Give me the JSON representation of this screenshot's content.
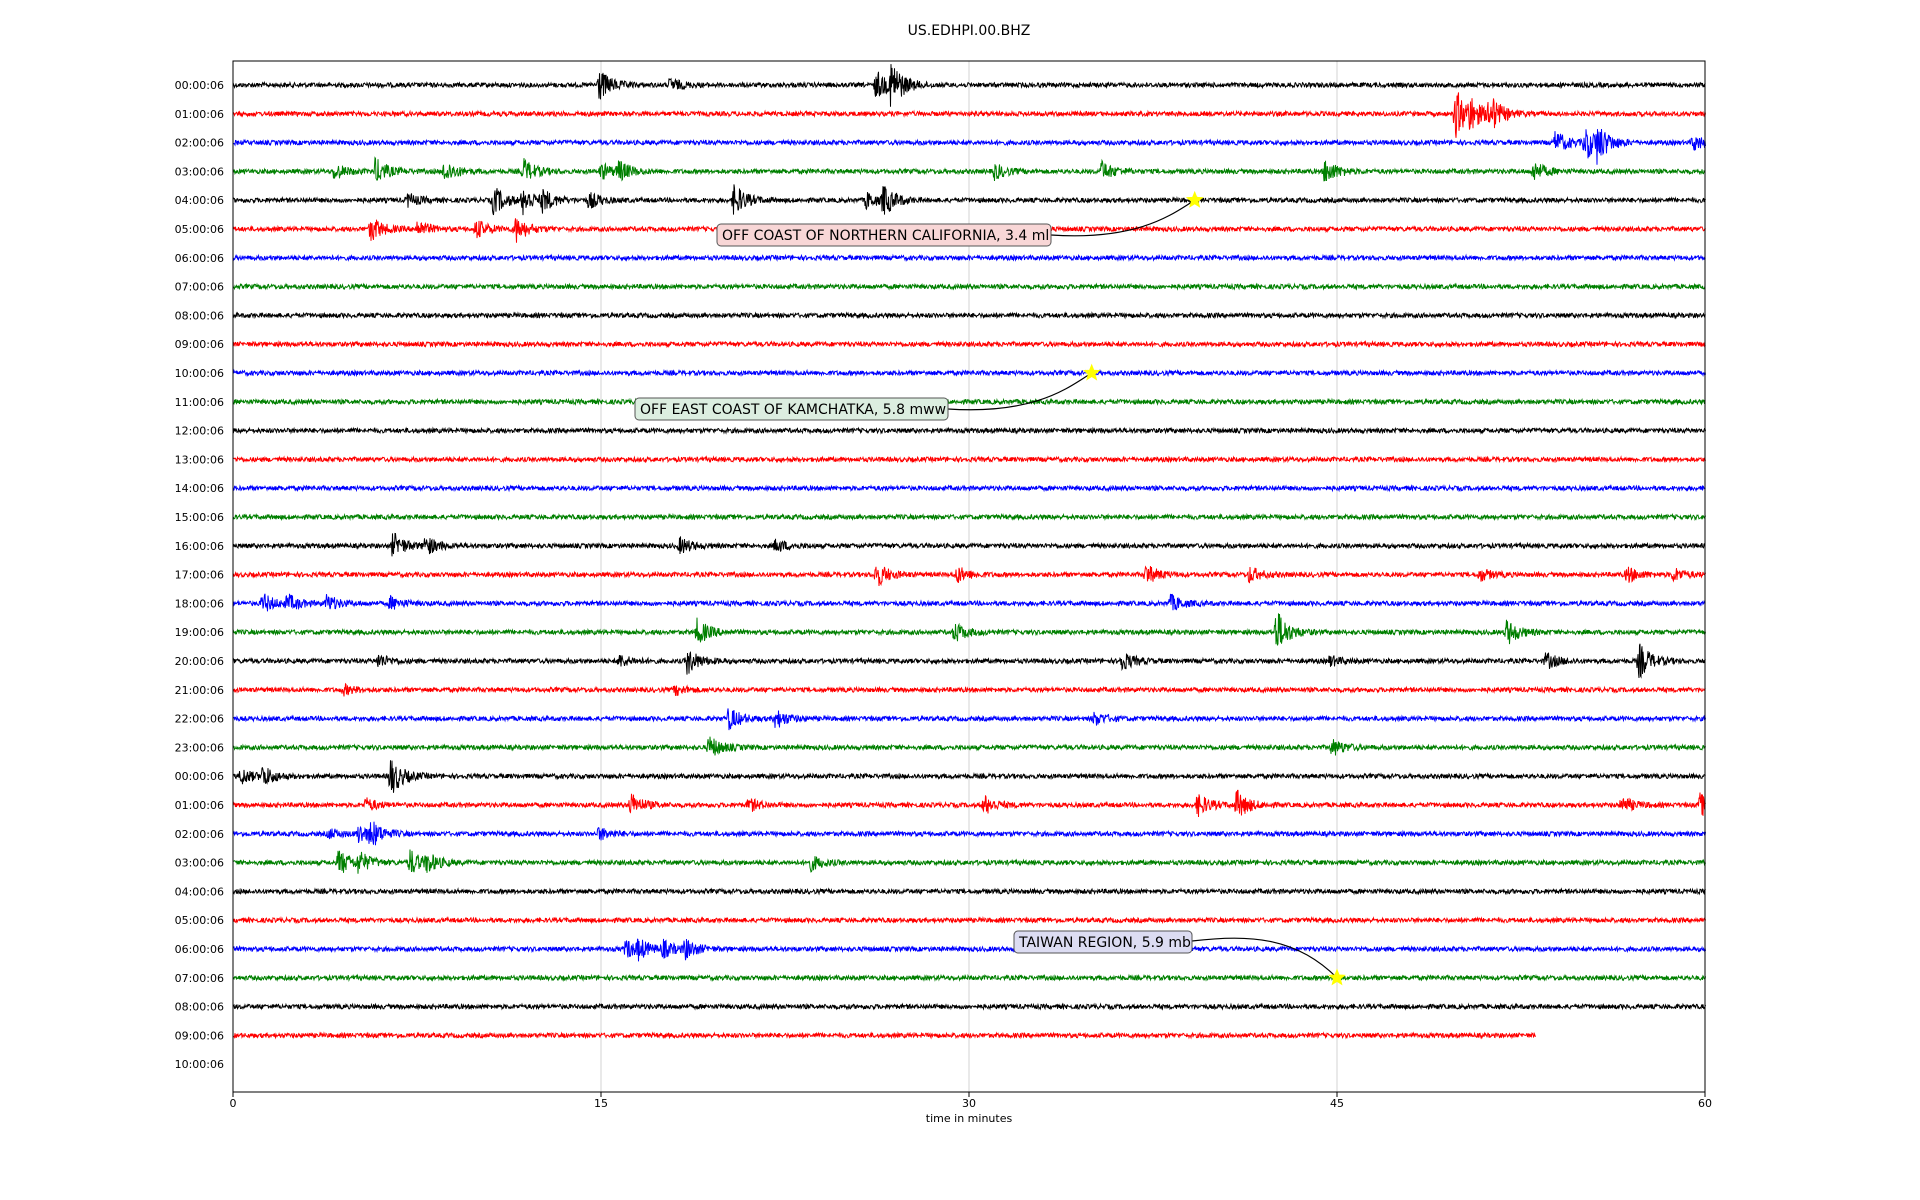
{
  "chart_data": {
    "type": "line",
    "title": "US.EDHPI.00.BHZ",
    "xlabel": "time in minutes",
    "xlim": [
      0,
      60
    ],
    "x_ticks": [
      0,
      15,
      30,
      45,
      60
    ],
    "grid": "vertical",
    "line_colors": [
      "#000000",
      "#ff0000",
      "#0000ff",
      "#008000"
    ],
    "marker_color": "#ffff00",
    "traces": [
      {
        "label": "00:00:06",
        "end": 60,
        "events": [
          {
            "t": 14.9,
            "a": 1.0
          },
          {
            "t": 17.8,
            "a": 0.4
          },
          {
            "t": 26.8,
            "a": 1.4
          },
          {
            "t": 26.2,
            "a": 0.9
          }
        ]
      },
      {
        "label": "01:00:06",
        "end": 60,
        "events": [
          {
            "t": 49.8,
            "a": 1.6
          },
          {
            "t": 51.2,
            "a": 1.1
          },
          {
            "t": 50.4,
            "a": 0.8
          }
        ]
      },
      {
        "label": "02:00:06",
        "end": 60,
        "events": [
          {
            "t": 53.9,
            "a": 0.7
          },
          {
            "t": 55.1,
            "a": 1.1
          },
          {
            "t": 55.6,
            "a": 0.9
          },
          {
            "t": 59.5,
            "a": 0.5
          }
        ]
      },
      {
        "label": "03:00:06",
        "end": 60,
        "events": [
          {
            "t": 4.1,
            "a": 0.5
          },
          {
            "t": 5.8,
            "a": 0.8
          },
          {
            "t": 8.6,
            "a": 0.7
          },
          {
            "t": 11.8,
            "a": 0.8
          },
          {
            "t": 15.0,
            "a": 0.5
          },
          {
            "t": 15.7,
            "a": 0.6
          },
          {
            "t": 31.0,
            "a": 0.5
          },
          {
            "t": 35.4,
            "a": 0.6
          },
          {
            "t": 44.5,
            "a": 0.8
          },
          {
            "t": 53.0,
            "a": 0.6
          }
        ]
      },
      {
        "label": "04:00:06",
        "end": 60,
        "events": [
          {
            "t": 7.1,
            "a": 0.4
          },
          {
            "t": 10.6,
            "a": 0.9
          },
          {
            "t": 11.8,
            "a": 0.8
          },
          {
            "t": 12.6,
            "a": 0.6
          },
          {
            "t": 14.5,
            "a": 0.5
          },
          {
            "t": 20.4,
            "a": 1.0
          },
          {
            "t": 25.8,
            "a": 0.5
          },
          {
            "t": 26.5,
            "a": 0.9
          }
        ]
      },
      {
        "label": "05:00:06",
        "end": 60,
        "events": [
          {
            "t": 5.6,
            "a": 0.8
          },
          {
            "t": 7.5,
            "a": 0.5
          },
          {
            "t": 9.9,
            "a": 0.6
          },
          {
            "t": 11.5,
            "a": 0.8
          }
        ]
      },
      {
        "label": "06:00:06",
        "end": 60,
        "events": []
      },
      {
        "label": "07:00:06",
        "end": 60,
        "events": []
      },
      {
        "label": "08:00:06",
        "end": 60,
        "events": []
      },
      {
        "label": "09:00:06",
        "end": 60,
        "events": []
      },
      {
        "label": "10:00:06",
        "end": 60,
        "events": []
      },
      {
        "label": "11:00:06",
        "end": 60,
        "events": []
      },
      {
        "label": "12:00:06",
        "end": 60,
        "events": []
      },
      {
        "label": "13:00:06",
        "end": 60,
        "events": []
      },
      {
        "label": "14:00:06",
        "end": 60,
        "events": []
      },
      {
        "label": "15:00:06",
        "end": 60,
        "events": []
      },
      {
        "label": "16:00:06",
        "end": 60,
        "events": [
          {
            "t": 6.5,
            "a": 0.8
          },
          {
            "t": 7.8,
            "a": 0.6
          },
          {
            "t": 18.2,
            "a": 0.5
          },
          {
            "t": 22.1,
            "a": 0.4
          }
        ]
      },
      {
        "label": "17:00:06",
        "end": 60,
        "events": [
          {
            "t": 26.2,
            "a": 0.8
          },
          {
            "t": 29.5,
            "a": 0.5
          },
          {
            "t": 37.2,
            "a": 0.6
          },
          {
            "t": 41.4,
            "a": 0.5
          },
          {
            "t": 50.8,
            "a": 0.4
          },
          {
            "t": 56.8,
            "a": 0.5
          },
          {
            "t": 58.7,
            "a": 0.4
          }
        ]
      },
      {
        "label": "18:00:06",
        "end": 60,
        "events": [
          {
            "t": 1.2,
            "a": 0.6
          },
          {
            "t": 2.2,
            "a": 0.5
          },
          {
            "t": 3.8,
            "a": 0.5
          },
          {
            "t": 6.4,
            "a": 0.4
          },
          {
            "t": 38.2,
            "a": 0.5
          }
        ]
      },
      {
        "label": "19:00:06",
        "end": 60,
        "events": [
          {
            "t": 18.9,
            "a": 0.8
          },
          {
            "t": 29.4,
            "a": 0.6
          },
          {
            "t": 42.5,
            "a": 1.4
          },
          {
            "t": 51.9,
            "a": 0.8
          }
        ]
      },
      {
        "label": "20:00:06",
        "end": 60,
        "events": [
          {
            "t": 5.9,
            "a": 0.4
          },
          {
            "t": 15.7,
            "a": 0.4
          },
          {
            "t": 18.5,
            "a": 0.8
          },
          {
            "t": 36.2,
            "a": 0.6
          },
          {
            "t": 44.7,
            "a": 0.3
          },
          {
            "t": 53.5,
            "a": 0.5
          },
          {
            "t": 57.3,
            "a": 1.1
          }
        ]
      },
      {
        "label": "21:00:06",
        "end": 60,
        "events": [
          {
            "t": 4.5,
            "a": 0.3
          },
          {
            "t": 18.0,
            "a": 0.3
          }
        ]
      },
      {
        "label": "22:00:06",
        "end": 60,
        "events": [
          {
            "t": 20.2,
            "a": 0.7
          },
          {
            "t": 22.1,
            "a": 0.6
          },
          {
            "t": 35.1,
            "a": 0.4
          }
        ]
      },
      {
        "label": "23:00:06",
        "end": 60,
        "events": [
          {
            "t": 19.4,
            "a": 0.7
          },
          {
            "t": 44.8,
            "a": 0.5
          }
        ]
      },
      {
        "label": "00:00:06",
        "end": 60,
        "events": [
          {
            "t": 0.3,
            "a": 0.5
          },
          {
            "t": 1.2,
            "a": 0.6
          },
          {
            "t": 6.4,
            "a": 1.2
          }
        ]
      },
      {
        "label": "01:00:06",
        "end": 60,
        "events": [
          {
            "t": 5.4,
            "a": 0.4
          },
          {
            "t": 16.2,
            "a": 0.7
          },
          {
            "t": 21.0,
            "a": 0.4
          },
          {
            "t": 30.6,
            "a": 0.6
          },
          {
            "t": 39.3,
            "a": 0.7
          },
          {
            "t": 40.9,
            "a": 0.9
          },
          {
            "t": 56.6,
            "a": 0.5
          },
          {
            "t": 59.8,
            "a": 0.7
          }
        ]
      },
      {
        "label": "02:00:06",
        "end": 60,
        "events": [
          {
            "t": 3.9,
            "a": 0.3
          },
          {
            "t": 5.1,
            "a": 0.6
          },
          {
            "t": 5.6,
            "a": 0.7
          },
          {
            "t": 14.9,
            "a": 0.4
          }
        ]
      },
      {
        "label": "03:00:06",
        "end": 60,
        "events": [
          {
            "t": 4.3,
            "a": 0.8
          },
          {
            "t": 5.1,
            "a": 0.6
          },
          {
            "t": 7.2,
            "a": 0.8
          },
          {
            "t": 7.9,
            "a": 0.5
          },
          {
            "t": 23.5,
            "a": 0.5
          }
        ]
      },
      {
        "label": "04:00:06",
        "end": 60,
        "events": []
      },
      {
        "label": "05:00:06",
        "end": 60,
        "events": []
      },
      {
        "label": "06:00:06",
        "end": 60,
        "events": [
          {
            "t": 16.0,
            "a": 0.6
          },
          {
            "t": 16.5,
            "a": 0.5
          },
          {
            "t": 17.5,
            "a": 0.5
          },
          {
            "t": 18.4,
            "a": 0.6
          }
        ]
      },
      {
        "label": "07:00:06",
        "end": 60,
        "events": []
      },
      {
        "label": "08:00:06",
        "end": 60,
        "events": []
      },
      {
        "label": "09:00:06",
        "end": 53.1,
        "events": []
      },
      {
        "label": "10:00:06",
        "end": 0,
        "events": []
      }
    ],
    "annotations": [
      {
        "text": "OFF COAST OF NORTHERN CALIFORNIA, 3.4 ml",
        "trace": 4,
        "t": 39.2,
        "box_bg": "#f8d6d6"
      },
      {
        "text": "OFF EAST COAST OF KAMCHATKA, 5.8 mww",
        "trace": 10,
        "t": 35.0,
        "box_bg": "#dceee0"
      },
      {
        "text": "TAIWAN REGION, 5.9 mb",
        "trace": 31,
        "t": 45.0,
        "box_bg": "#dcdcf2"
      }
    ]
  }
}
